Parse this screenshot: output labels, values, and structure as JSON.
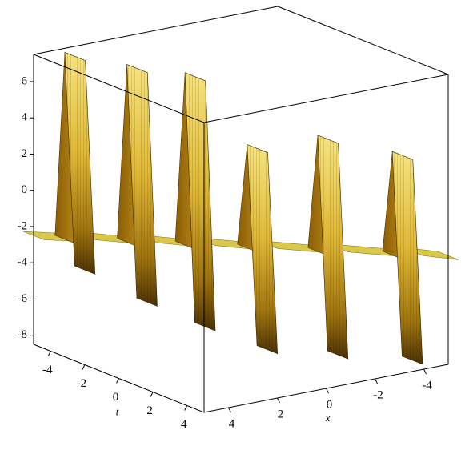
{
  "chart_data": {
    "type": "surface",
    "xlabel": "x",
    "tlabel": "t",
    "xlim": [
      5,
      -5
    ],
    "tlim": [
      -5,
      5
    ],
    "zlim": [
      -8.5,
      7.5
    ],
    "xticks": [
      4,
      2,
      0,
      -2,
      -4
    ],
    "tticks": [
      -4,
      -2,
      0,
      2,
      4
    ],
    "zticks": [
      -8,
      -6,
      -4,
      -2,
      0,
      2,
      4,
      6
    ],
    "waves": [
      {
        "x": 4,
        "t": -4,
        "peak": 7.5,
        "trough": -4.4
      },
      {
        "x": 2.5,
        "t": -2.5,
        "peak": 7,
        "trough": -6
      },
      {
        "x": 1.1,
        "t": -1.1,
        "peak": 6.7,
        "trough": -7.2
      },
      {
        "x": -0.4,
        "t": 0.4,
        "peak": 2.9,
        "trough": -8.3
      },
      {
        "x": -2.1,
        "t": 2.1,
        "peak": 3.6,
        "trough": -8.4
      },
      {
        "x": -3.9,
        "t": 3.9,
        "peak": 2.9,
        "trough": -8.5
      }
    ],
    "base_z": -2.5
  }
}
